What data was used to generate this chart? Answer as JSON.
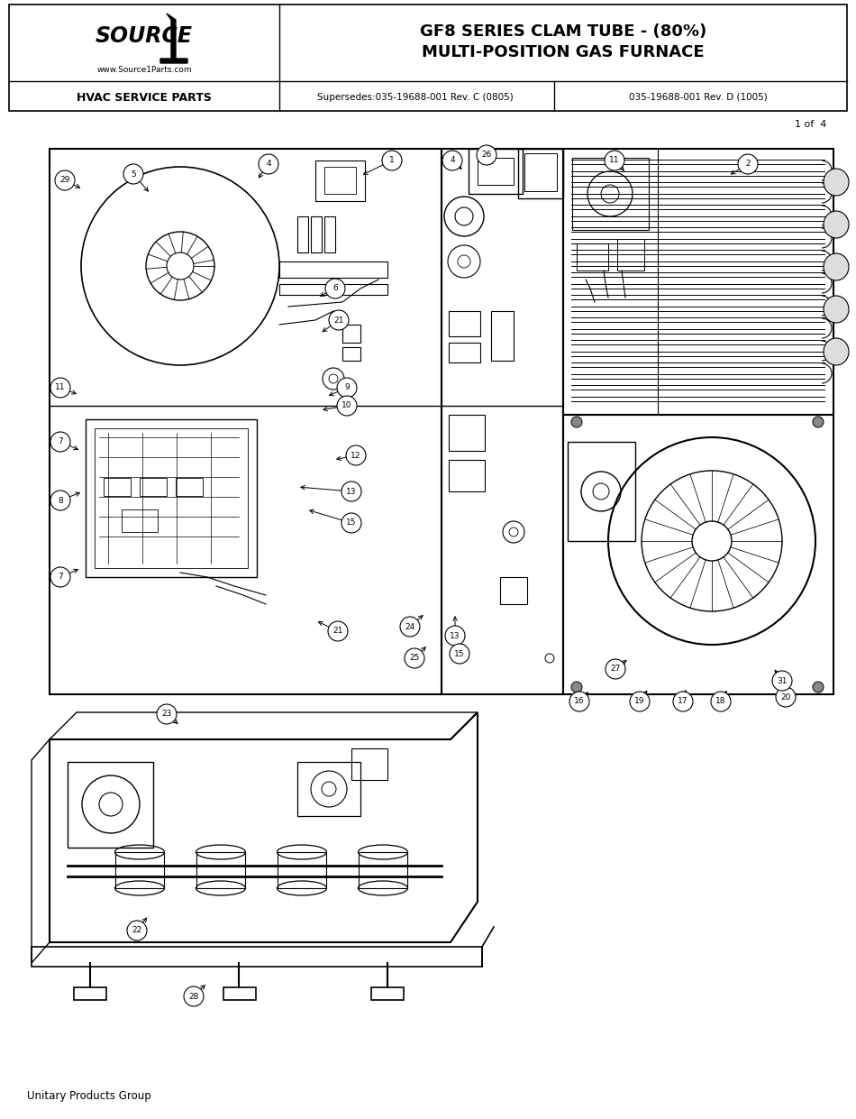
{
  "title_line1": "GF8 SERIES CLAM TUBE - (80%)",
  "title_line2": "MULTI-POSITION GAS FURNACE",
  "header_left_bold": "HVAC SERVICE PARTS",
  "header_mid": "Supersedes:035-19688-001 Rev. C (0805)",
  "header_right": "035-19688-001 Rev. D (1005)",
  "website": "www.Source1Parts.com",
  "page_label": "1 of  4",
  "footer": "Unitary Products Group",
  "bg_color": "#ffffff",
  "line_color": "#000000",
  "fig_width": 9.5,
  "fig_height": 12.41,
  "dpi": 100
}
